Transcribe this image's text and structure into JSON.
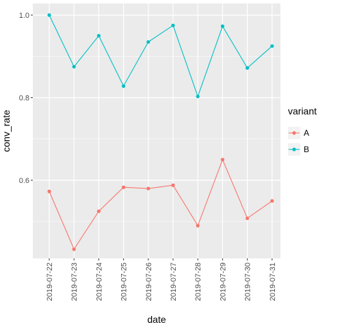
{
  "chart_data": {
    "type": "line",
    "xlabel": "date",
    "ylabel": "conv_rate",
    "x": [
      "2019-07-22",
      "2019-07-23",
      "2019-07-24",
      "2019-07-25",
      "2019-07-26",
      "2019-07-27",
      "2019-07-28",
      "2019-07-29",
      "2019-07-30",
      "2019-07-31"
    ],
    "y_ticks": [
      "0.6",
      "0.8",
      "1.0"
    ],
    "ylim": [
      0.415,
      1.02
    ],
    "grid": true,
    "legend_title": "variant",
    "legend_position": "right",
    "series": [
      {
        "name": "A",
        "color": "#F8766D",
        "values": [
          0.573,
          0.433,
          0.525,
          0.583,
          0.58,
          0.588,
          0.49,
          0.65,
          0.508,
          0.55
        ]
      },
      {
        "name": "B",
        "color": "#00BFC4",
        "values": [
          1.0,
          0.875,
          0.95,
          0.828,
          0.935,
          0.975,
          0.803,
          0.973,
          0.872,
          0.925
        ]
      }
    ],
    "panel_background": "#EBEBEB",
    "grid_color": "#FFFFFF"
  }
}
